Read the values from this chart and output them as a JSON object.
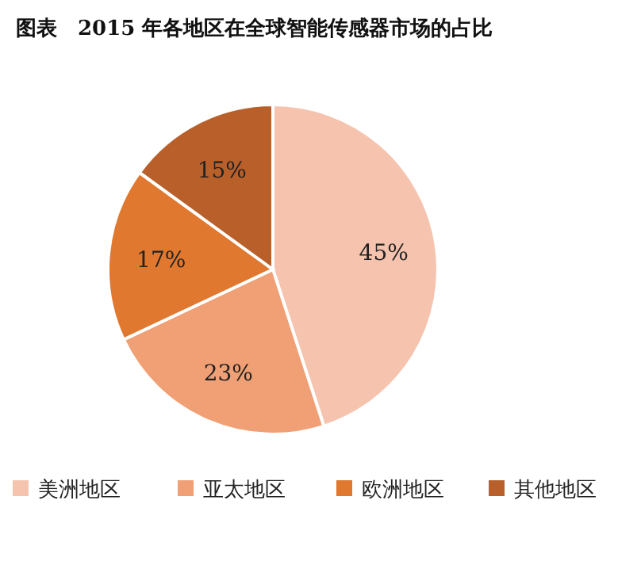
{
  "chart_data": {
    "type": "pie",
    "title": "图表　2015 年各地区在全球智能传感器市场的占比",
    "categories": [
      "美洲地区",
      "亚太地区",
      "欧洲地区",
      "其他地区"
    ],
    "values": [
      45,
      23,
      17,
      15
    ],
    "colors": [
      "#f5c3ae",
      "#f0a074",
      "#e0782f",
      "#b85f2a"
    ],
    "value_labels": [
      "45%",
      "23%",
      "17%",
      "15%"
    ],
    "legend": "bottom"
  }
}
